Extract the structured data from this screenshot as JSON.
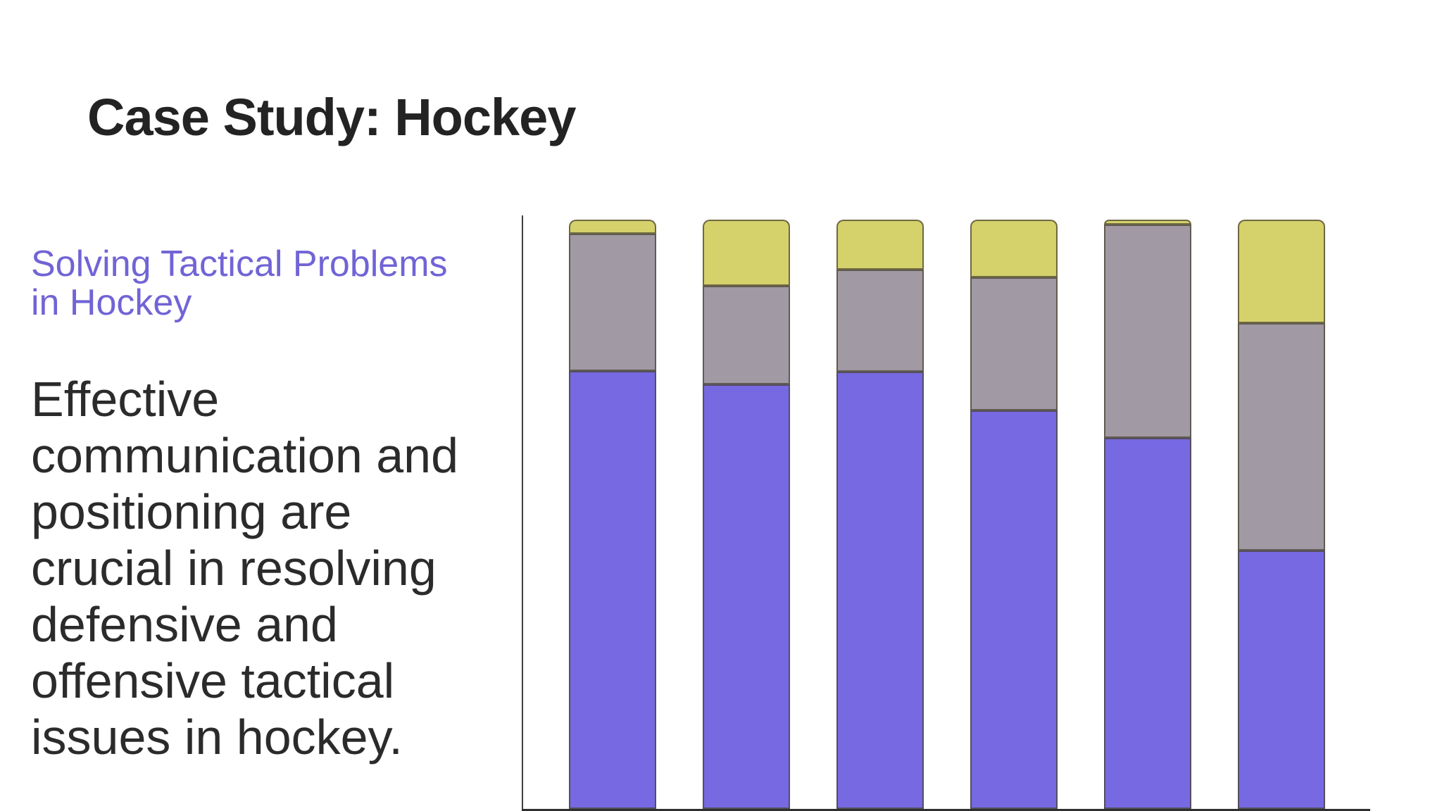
{
  "slide": {
    "title": "Case Study: Hockey",
    "subtitle_lines": [
      "Solving Tactical Problems",
      "in Hockey"
    ],
    "body_lines": [
      "Effective",
      "communication and",
      "positioning are",
      "crucial in resolving",
      "defensive and",
      "offensive tactical",
      "issues in hockey."
    ],
    "colors": {
      "background": "#ffffff",
      "title_text": "#232323",
      "subtitle_text": "#7164d5",
      "body_text": "#2b2b2b"
    }
  },
  "chart_data": {
    "type": "bar",
    "subtype": "stacked-percent-column",
    "title": "",
    "xlabel": "",
    "ylabel": "",
    "categories": [
      "",
      "",
      "",
      "",
      "",
      ""
    ],
    "series": [
      {
        "name": "bottom-segment",
        "color": "#7669e1",
        "values": [
          74.3,
          72.1,
          74.2,
          67.6,
          63.0,
          43.8
        ]
      },
      {
        "name": "middle-segment",
        "color": "#a19aa4",
        "values": [
          23.3,
          16.7,
          17.3,
          22.6,
          36.2,
          38.6
        ]
      },
      {
        "name": "top-segment",
        "color": "#d5d16b",
        "values": [
          2.4,
          11.2,
          8.5,
          9.8,
          0.8,
          17.6
        ]
      }
    ],
    "ylim": [
      0,
      100
    ],
    "gridlines": false,
    "legend": false,
    "tick_labels_visible": false,
    "axis_color": "#3a3a3a",
    "bar_border_color": "#5d584a"
  }
}
